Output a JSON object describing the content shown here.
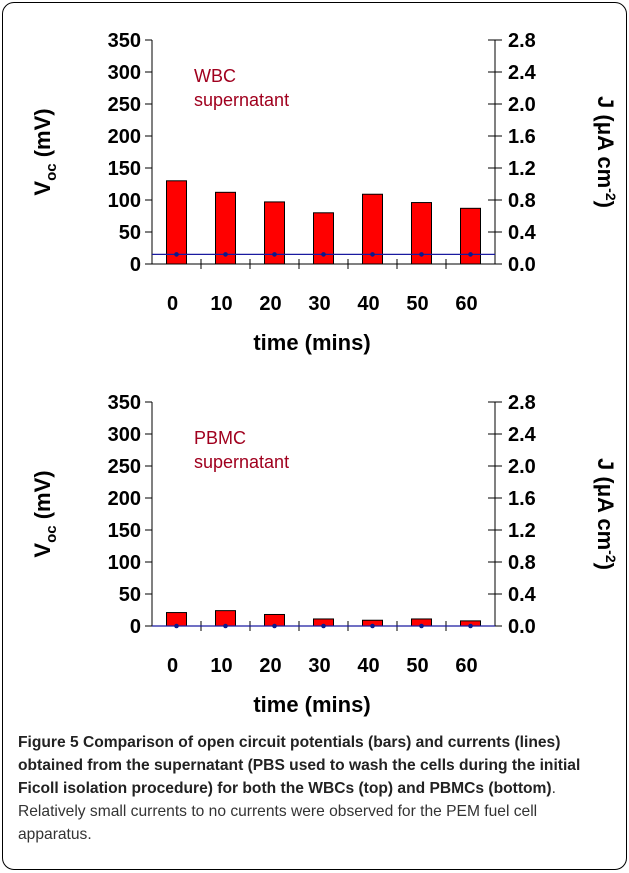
{
  "chart_data": [
    {
      "type": "bar",
      "panel": "top",
      "categories": [
        "0",
        "10",
        "20",
        "30",
        "40",
        "50",
        "60"
      ],
      "series": [
        {
          "axis": "left",
          "kind": "bar",
          "color": "#ff0000",
          "values": [
            130,
            112,
            97,
            80,
            109,
            96,
            87
          ]
        },
        {
          "axis": "right",
          "kind": "line",
          "color": "#1a1aa0",
          "values": [
            0.12,
            0.12,
            0.12,
            0.12,
            0.12,
            0.12,
            0.12
          ]
        }
      ],
      "xlabel": "time (mins)",
      "ylabel_main": "V",
      "ylabel_sub": "oc",
      "ylabel_unit": "(mV)",
      "y2label_main": "J (μA cm",
      "y2label_sup": "-2",
      "y2label_end": ")",
      "ylim": [
        0,
        350
      ],
      "yticks": [
        "0",
        "50",
        "100",
        "150",
        "200",
        "250",
        "300",
        "350"
      ],
      "y2lim": [
        0,
        2.8
      ],
      "y2ticks": [
        "0.0",
        "0.4",
        "0.8",
        "1.2",
        "1.6",
        "2.0",
        "2.4",
        "2.8"
      ],
      "annotation": [
        "WBC",
        "supernatant"
      ],
      "annotation_color": "#a0001e"
    },
    {
      "type": "bar",
      "panel": "bottom",
      "categories": [
        "0",
        "10",
        "20",
        "30",
        "40",
        "50",
        "60"
      ],
      "series": [
        {
          "axis": "left",
          "kind": "bar",
          "color": "#ff0000",
          "values": [
            21,
            24,
            18,
            11,
            9,
            11,
            8
          ]
        },
        {
          "axis": "right",
          "kind": "line",
          "color": "#1a1aa0",
          "values": [
            0.0,
            0.0,
            0.0,
            0.0,
            0.0,
            0.0,
            0.0
          ]
        }
      ],
      "xlabel": "time (mins)",
      "ylabel_main": "V",
      "ylabel_sub": "oc",
      "ylabel_unit": "(mV)",
      "y2label_main": "J (μA cm",
      "y2label_sup": "-2",
      "y2label_end": ")",
      "ylim": [
        0,
        350
      ],
      "yticks": [
        "0",
        "50",
        "100",
        "150",
        "200",
        "250",
        "300",
        "350"
      ],
      "y2lim": [
        0,
        2.8
      ],
      "y2ticks": [
        "0.0",
        "0.4",
        "0.8",
        "1.2",
        "1.6",
        "2.0",
        "2.4",
        "2.8"
      ],
      "annotation": [
        "PBMC",
        "supernatant"
      ],
      "annotation_color": "#a0001e"
    }
  ],
  "caption": {
    "bold": "Figure 5 Comparison of open circuit potentials (bars) and currents (lines) obtained from the supernatant (PBS used to wash the cells during the initial Ficoll isolation procedure) for both the WBCs (top) and PBMCs (bottom)",
    "rest": ". Relatively small currents to no currents were observed for the PEM fuel cell apparatus."
  }
}
